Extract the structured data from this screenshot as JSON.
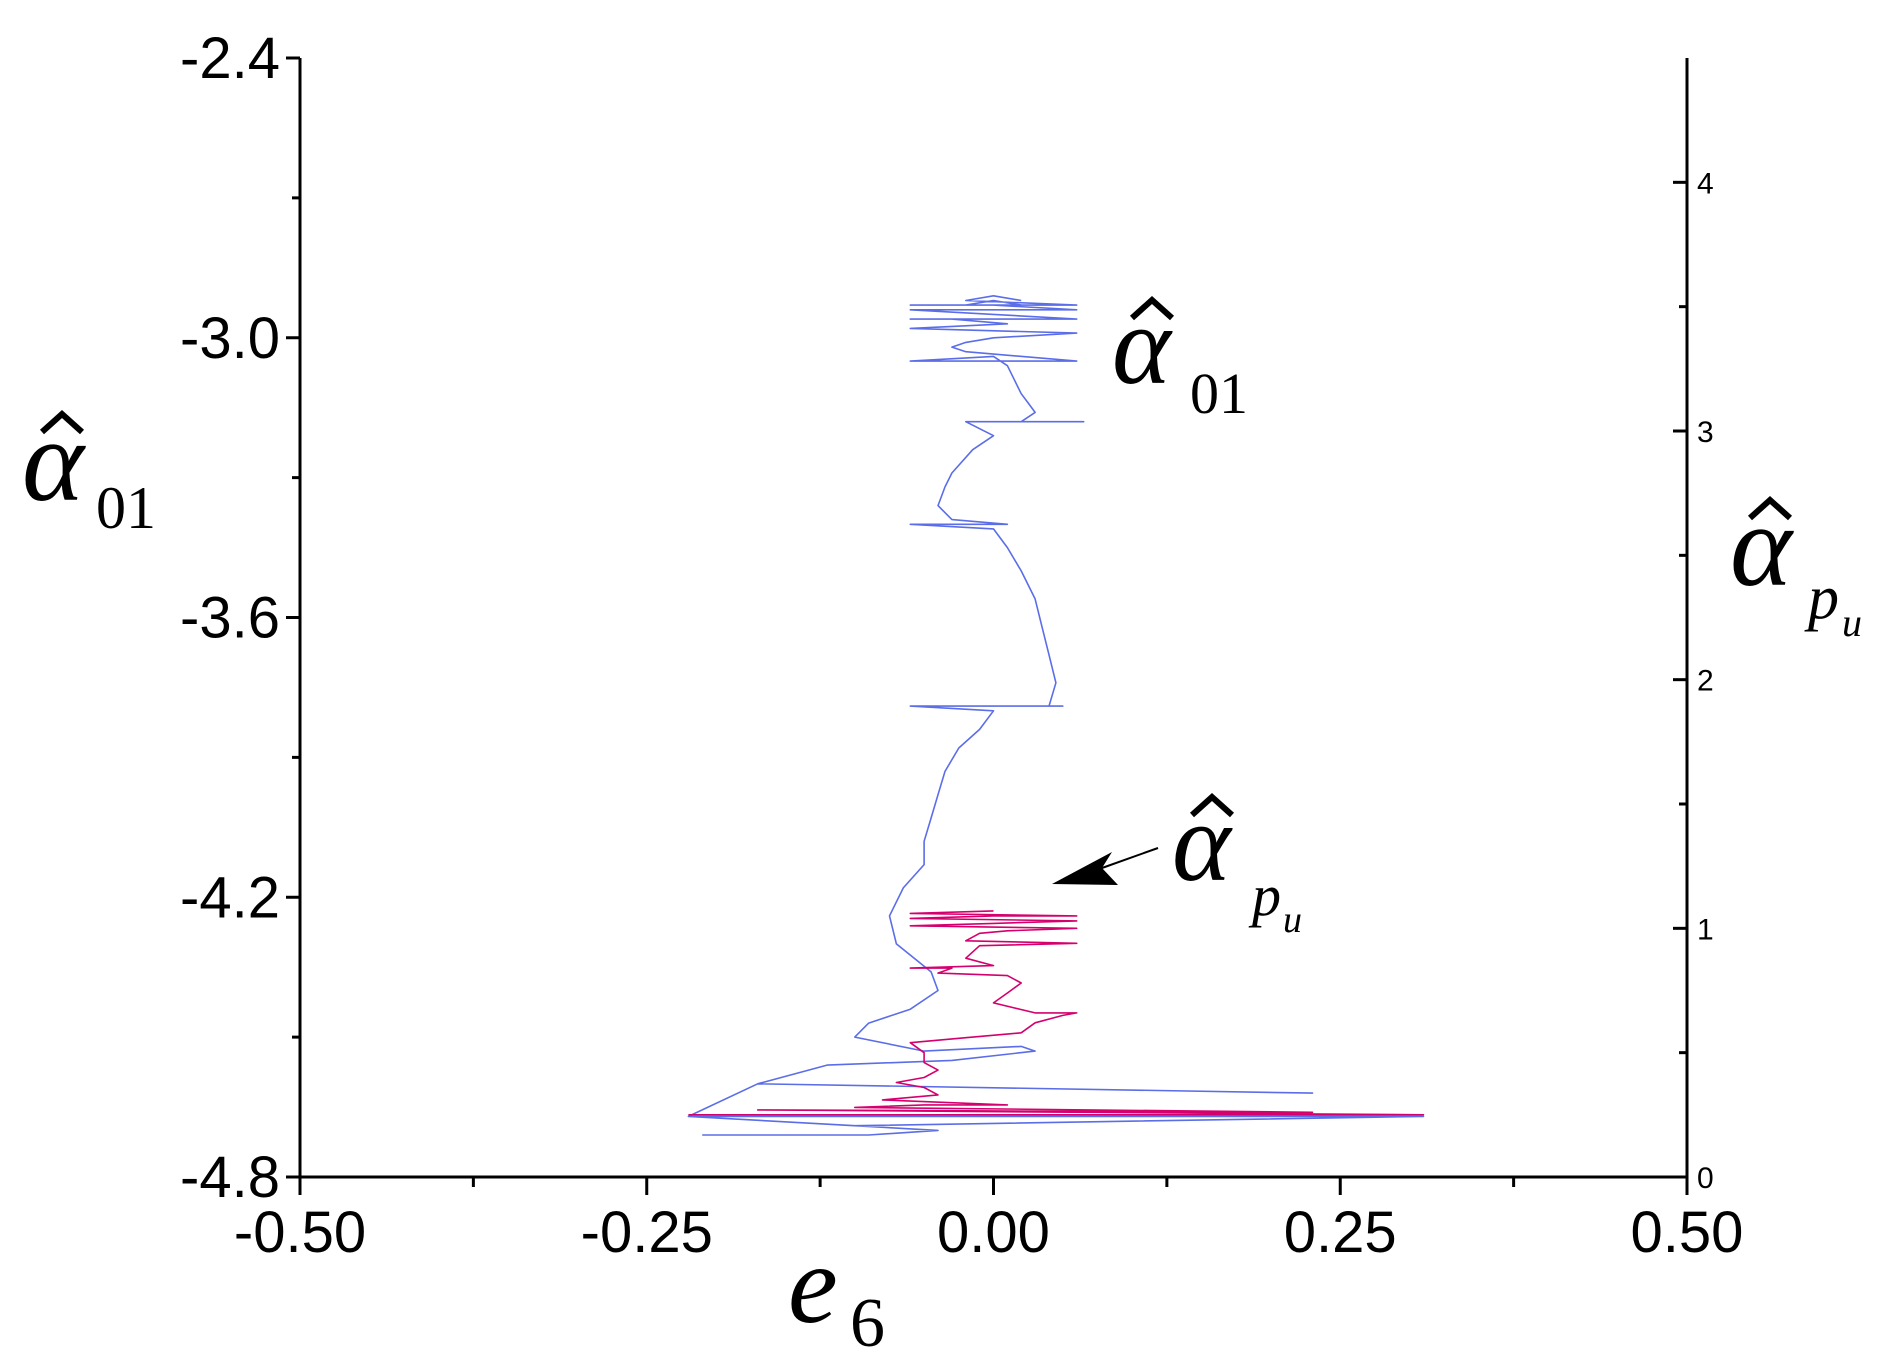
{
  "chart_data": {
    "type": "line",
    "xlabel": {
      "base": "e",
      "sub": "6"
    },
    "ylabel_left": {
      "base": "α",
      "sub": "01"
    },
    "ylabel_right": {
      "base": "α",
      "sub_p": "p",
      "sub_u": "u"
    },
    "xlim": [
      -0.5,
      0.5
    ],
    "ylim_left": [
      -4.8,
      -2.4
    ],
    "ylim_right": [
      0,
      4.5
    ],
    "x_ticks": [
      "-0.50",
      "-0.25",
      "0.00",
      "0.25",
      "0.50"
    ],
    "y_left_ticks": [
      "-2.4",
      "-3.0",
      "-3.6",
      "-4.2",
      "-4.8"
    ],
    "y_right_ticks": [
      "0",
      "1",
      "2",
      "3",
      "4"
    ],
    "colors": {
      "alpha01": "#5b6ee8",
      "alpha_pu": "#d4006e"
    },
    "annotations": [
      {
        "id": "label_alpha01",
        "base": "α",
        "sub": "01",
        "series": "alpha01"
      },
      {
        "id": "label_alpha_pu",
        "base": "α",
        "sub_p": "p",
        "sub_u": "u",
        "series": "alpha_pu",
        "arrow": true
      }
    ],
    "series": [
      {
        "id": "alpha01",
        "axis": "left",
        "color": "#5b6ee8",
        "points": [
          [
            -0.21,
            -4.71
          ],
          [
            -0.09,
            -4.71
          ],
          [
            -0.04,
            -4.7
          ],
          [
            -0.22,
            -4.67
          ],
          [
            0.31,
            -4.67
          ],
          [
            -0.1,
            -4.69
          ],
          [
            -0.22,
            -4.67
          ],
          [
            -0.17,
            -4.6
          ],
          [
            0.23,
            -4.62
          ],
          [
            -0.17,
            -4.6
          ],
          [
            -0.12,
            -4.56
          ],
          [
            -0.03,
            -4.55
          ],
          [
            0.03,
            -4.53
          ],
          [
            0.02,
            -4.52
          ],
          [
            -0.05,
            -4.53
          ],
          [
            -0.1,
            -4.5
          ],
          [
            -0.09,
            -4.47
          ],
          [
            -0.06,
            -4.44
          ],
          [
            -0.04,
            -4.4
          ],
          [
            -0.045,
            -4.36
          ],
          [
            -0.07,
            -4.3
          ],
          [
            -0.075,
            -4.24
          ],
          [
            -0.065,
            -4.18
          ],
          [
            -0.05,
            -4.13
          ],
          [
            -0.05,
            -4.08
          ],
          [
            -0.045,
            -4.03
          ],
          [
            -0.04,
            -3.98
          ],
          [
            -0.035,
            -3.93
          ],
          [
            -0.025,
            -3.88
          ],
          [
            -0.01,
            -3.84
          ],
          [
            0.0,
            -3.8
          ],
          [
            -0.06,
            -3.79
          ],
          [
            0.05,
            -3.79
          ],
          [
            0.04,
            -3.79
          ],
          [
            0.045,
            -3.74
          ],
          [
            0.04,
            -3.68
          ],
          [
            0.035,
            -3.62
          ],
          [
            0.03,
            -3.56
          ],
          [
            0.02,
            -3.5
          ],
          [
            0.01,
            -3.45
          ],
          [
            0.0,
            -3.41
          ],
          [
            -0.06,
            -3.4
          ],
          [
            0.01,
            -3.4
          ],
          [
            -0.03,
            -3.39
          ],
          [
            -0.04,
            -3.36
          ],
          [
            -0.035,
            -3.32
          ],
          [
            -0.03,
            -3.29
          ],
          [
            -0.015,
            -3.24
          ],
          [
            0.0,
            -3.21
          ],
          [
            -0.02,
            -3.18
          ],
          [
            0.065,
            -3.18
          ],
          [
            0.02,
            -3.18
          ],
          [
            0.03,
            -3.16
          ],
          [
            0.025,
            -3.14
          ],
          [
            0.02,
            -3.12
          ],
          [
            0.015,
            -3.09
          ],
          [
            0.01,
            -3.06
          ],
          [
            0.0,
            -3.04
          ],
          [
            -0.06,
            -3.05
          ],
          [
            0.06,
            -3.05
          ],
          [
            -0.02,
            -3.03
          ],
          [
            -0.03,
            -3.02
          ],
          [
            -0.02,
            -3.01
          ],
          [
            0.0,
            -3.0
          ],
          [
            0.06,
            -2.99
          ],
          [
            -0.06,
            -2.98
          ],
          [
            0.01,
            -2.97
          ],
          [
            -0.03,
            -2.96
          ],
          [
            -0.06,
            -2.96
          ],
          [
            0.06,
            -2.96
          ],
          [
            0.0,
            -2.95
          ],
          [
            -0.06,
            -2.94
          ],
          [
            0.06,
            -2.94
          ],
          [
            0.0,
            -2.93
          ],
          [
            -0.02,
            -2.93
          ],
          [
            0.0,
            -2.92
          ],
          [
            0.02,
            -2.93
          ],
          [
            -0.06,
            -2.93
          ],
          [
            0.06,
            -2.93
          ],
          [
            -0.02,
            -2.92
          ],
          [
            0.0,
            -2.91
          ],
          [
            0.02,
            -2.92
          ]
        ]
      },
      {
        "id": "alpha_pu",
        "axis": "right",
        "color": "#d4006e",
        "points": [
          [
            -0.22,
            0.25
          ],
          [
            0.31,
            0.25
          ],
          [
            -0.17,
            0.27
          ],
          [
            0.23,
            0.26
          ],
          [
            -0.1,
            0.28
          ],
          [
            -0.05,
            0.29
          ],
          [
            0.01,
            0.29
          ],
          [
            -0.08,
            0.31
          ],
          [
            -0.04,
            0.33
          ],
          [
            -0.05,
            0.36
          ],
          [
            -0.07,
            0.38
          ],
          [
            -0.05,
            0.4
          ],
          [
            -0.04,
            0.43
          ],
          [
            -0.05,
            0.46
          ],
          [
            -0.05,
            0.5
          ],
          [
            -0.06,
            0.54
          ],
          [
            -0.02,
            0.56
          ],
          [
            0.02,
            0.58
          ],
          [
            0.03,
            0.62
          ],
          [
            0.05,
            0.65
          ],
          [
            0.06,
            0.66
          ],
          [
            0.03,
            0.66
          ],
          [
            0.0,
            0.7
          ],
          [
            0.01,
            0.74
          ],
          [
            0.02,
            0.78
          ],
          [
            0.01,
            0.81
          ],
          [
            -0.04,
            0.82
          ],
          [
            -0.03,
            0.84
          ],
          [
            -0.06,
            0.84
          ],
          [
            0.0,
            0.85
          ],
          [
            -0.02,
            0.88
          ],
          [
            -0.01,
            0.93
          ],
          [
            0.06,
            0.94
          ],
          [
            -0.02,
            0.95
          ],
          [
            -0.01,
            0.98
          ],
          [
            0.01,
            0.99
          ],
          [
            0.06,
            1.0
          ],
          [
            -0.06,
            1.01
          ],
          [
            0.0,
            1.02
          ],
          [
            0.06,
            1.03
          ],
          [
            -0.06,
            1.04
          ],
          [
            0.0,
            1.05
          ],
          [
            0.06,
            1.05
          ],
          [
            -0.06,
            1.06
          ],
          [
            0.0,
            1.07
          ]
        ]
      }
    ]
  }
}
